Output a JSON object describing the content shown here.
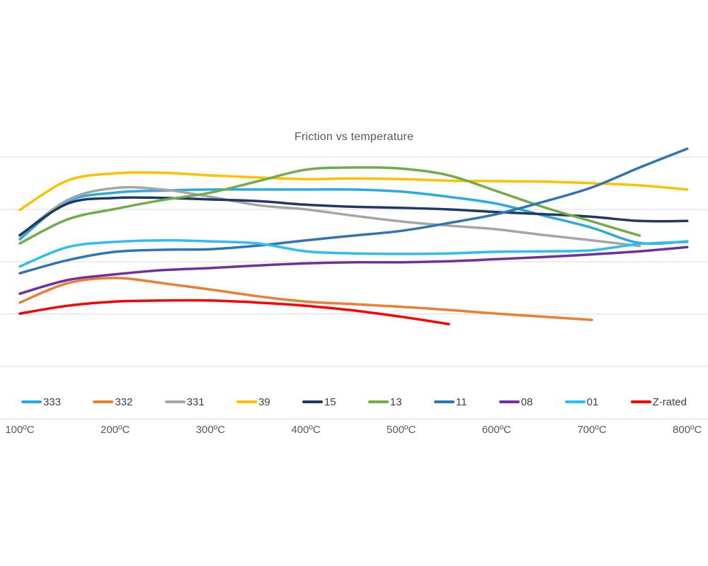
{
  "chart_data": {
    "type": "line",
    "title": "Friction vs temperature",
    "line_style": "smooth",
    "grid": true,
    "legend_position": "bottom",
    "x_axis": {
      "unit": "ºC",
      "tick_values": [
        100,
        200,
        300,
        400,
        500,
        600,
        700,
        800
      ],
      "tick_labels": [
        "100ºC",
        "200ºC",
        "300ºC",
        "400ºC",
        "500ºC",
        "600ºC",
        "700ºC",
        "800ºC"
      ]
    },
    "y_axis": {
      "tick_labels_visible": false,
      "gridlines_at": [
        0.1,
        0.2,
        0.3,
        0.4,
        0.5
      ],
      "ylim": [
        0,
        0.55
      ],
      "scale_note": "axis unlabeled in source; values estimated, one gridline = 0.1"
    },
    "series": [
      {
        "name": "333",
        "color": "#29ABE2",
        "points": [
          [
            100,
            0.343
          ],
          [
            150,
            0.415
          ],
          [
            200,
            0.432
          ],
          [
            250,
            0.436
          ],
          [
            300,
            0.438
          ],
          [
            350,
            0.438
          ],
          [
            400,
            0.438
          ],
          [
            450,
            0.438
          ],
          [
            500,
            0.434
          ],
          [
            550,
            0.424
          ],
          [
            600,
            0.411
          ],
          [
            650,
            0.388
          ],
          [
            700,
            0.365
          ],
          [
            750,
            0.336
          ],
          [
            800,
            0.339
          ]
        ]
      },
      {
        "name": "332",
        "color": "#ED7D31",
        "points": [
          [
            100,
            0.222
          ],
          [
            150,
            0.259
          ],
          [
            200,
            0.269
          ],
          [
            250,
            0.259
          ],
          [
            300,
            0.247
          ],
          [
            350,
            0.234
          ],
          [
            400,
            0.224
          ],
          [
            450,
            0.219
          ],
          [
            500,
            0.214
          ],
          [
            550,
            0.208
          ],
          [
            600,
            0.201
          ],
          [
            650,
            0.195
          ],
          [
            700,
            0.189
          ]
        ]
      },
      {
        "name": "331",
        "color": "#A6A6A6",
        "points": [
          [
            100,
            0.349
          ],
          [
            150,
            0.418
          ],
          [
            200,
            0.441
          ],
          [
            250,
            0.438
          ],
          [
            300,
            0.424
          ],
          [
            350,
            0.408
          ],
          [
            400,
            0.4
          ],
          [
            450,
            0.388
          ],
          [
            500,
            0.377
          ],
          [
            550,
            0.369
          ],
          [
            600,
            0.362
          ],
          [
            650,
            0.351
          ],
          [
            700,
            0.341
          ],
          [
            750,
            0.33
          ]
        ]
      },
      {
        "name": "39",
        "color": "#FFC000",
        "points": [
          [
            100,
            0.399
          ],
          [
            150,
            0.455
          ],
          [
            200,
            0.469
          ],
          [
            250,
            0.47
          ],
          [
            300,
            0.465
          ],
          [
            350,
            0.461
          ],
          [
            400,
            0.458
          ],
          [
            450,
            0.459
          ],
          [
            500,
            0.458
          ],
          [
            550,
            0.455
          ],
          [
            600,
            0.454
          ],
          [
            650,
            0.453
          ],
          [
            700,
            0.45
          ],
          [
            750,
            0.446
          ],
          [
            800,
            0.438
          ]
        ]
      },
      {
        "name": "15",
        "color": "#1F3864",
        "points": [
          [
            100,
            0.351
          ],
          [
            150,
            0.411
          ],
          [
            200,
            0.422
          ],
          [
            250,
            0.422
          ],
          [
            300,
            0.419
          ],
          [
            350,
            0.416
          ],
          [
            400,
            0.409
          ],
          [
            450,
            0.405
          ],
          [
            500,
            0.403
          ],
          [
            550,
            0.4
          ],
          [
            600,
            0.395
          ],
          [
            650,
            0.391
          ],
          [
            700,
            0.386
          ],
          [
            750,
            0.378
          ],
          [
            800,
            0.378
          ]
        ]
      },
      {
        "name": "13",
        "color": "#70AD47",
        "points": [
          [
            100,
            0.335
          ],
          [
            150,
            0.381
          ],
          [
            200,
            0.401
          ],
          [
            250,
            0.418
          ],
          [
            300,
            0.432
          ],
          [
            350,
            0.454
          ],
          [
            400,
            0.476
          ],
          [
            450,
            0.48
          ],
          [
            500,
            0.478
          ],
          [
            550,
            0.465
          ],
          [
            600,
            0.435
          ],
          [
            650,
            0.404
          ],
          [
            700,
            0.377
          ],
          [
            750,
            0.35
          ]
        ]
      },
      {
        "name": "11",
        "color": "#2E75B6",
        "points": [
          [
            100,
            0.278
          ],
          [
            150,
            0.303
          ],
          [
            200,
            0.319
          ],
          [
            250,
            0.323
          ],
          [
            300,
            0.324
          ],
          [
            350,
            0.331
          ],
          [
            400,
            0.341
          ],
          [
            450,
            0.35
          ],
          [
            500,
            0.359
          ],
          [
            550,
            0.374
          ],
          [
            600,
            0.391
          ],
          [
            650,
            0.415
          ],
          [
            700,
            0.442
          ],
          [
            750,
            0.48
          ],
          [
            800,
            0.516
          ]
        ]
      },
      {
        "name": "08",
        "color": "#7030A0",
        "points": [
          [
            100,
            0.239
          ],
          [
            150,
            0.265
          ],
          [
            200,
            0.276
          ],
          [
            250,
            0.284
          ],
          [
            300,
            0.288
          ],
          [
            350,
            0.293
          ],
          [
            400,
            0.297
          ],
          [
            450,
            0.299
          ],
          [
            500,
            0.299
          ],
          [
            550,
            0.301
          ],
          [
            600,
            0.305
          ],
          [
            650,
            0.309
          ],
          [
            700,
            0.314
          ],
          [
            750,
            0.32
          ],
          [
            800,
            0.328
          ]
        ]
      },
      {
        "name": "01",
        "color": "#2FBDF1",
        "points": [
          [
            100,
            0.291
          ],
          [
            150,
            0.328
          ],
          [
            200,
            0.338
          ],
          [
            250,
            0.341
          ],
          [
            300,
            0.339
          ],
          [
            350,
            0.335
          ],
          [
            400,
            0.32
          ],
          [
            450,
            0.316
          ],
          [
            500,
            0.315
          ],
          [
            550,
            0.316
          ],
          [
            600,
            0.319
          ],
          [
            650,
            0.32
          ],
          [
            700,
            0.322
          ],
          [
            750,
            0.334
          ],
          [
            800,
            0.338
          ]
        ]
      },
      {
        "name": "Z-rated",
        "color": "#FF0000",
        "points": [
          [
            100,
            0.201
          ],
          [
            150,
            0.216
          ],
          [
            200,
            0.224
          ],
          [
            250,
            0.226
          ],
          [
            300,
            0.226
          ],
          [
            350,
            0.222
          ],
          [
            400,
            0.216
          ],
          [
            450,
            0.207
          ],
          [
            500,
            0.195
          ],
          [
            550,
            0.181
          ]
        ]
      }
    ]
  },
  "styles": {
    "gridline_color": "#D9D9D9",
    "title_color": "#595959",
    "axis_label_color": "#595959",
    "legend_text_color": "#404040",
    "background": "#FFFFFF"
  }
}
